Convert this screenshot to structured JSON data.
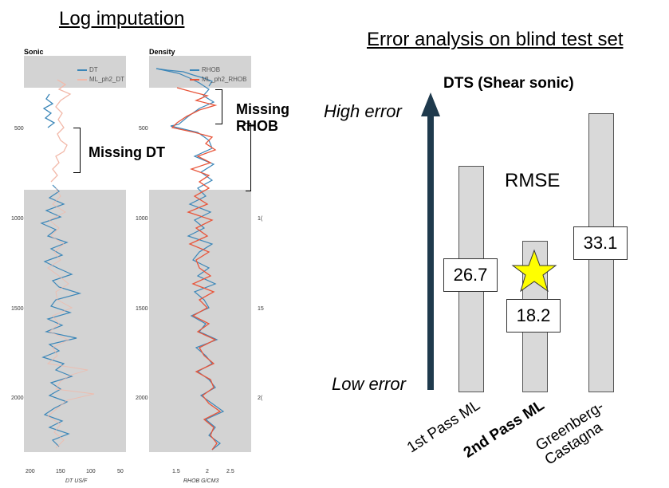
{
  "left_title": "Log imputation",
  "right_title": "Error analysis on blind test set",
  "sonic_panel": {
    "header": "Sonic",
    "legend": [
      {
        "label": "DT",
        "color": "#3b86b8"
      },
      {
        "label": "ML_ph2_DT",
        "color": "#f2b8a8"
      }
    ],
    "xticks": [
      "200",
      "150",
      "100",
      "50"
    ],
    "xaxis_label": "DT US/F",
    "callout": "Missing DT"
  },
  "density_panel": {
    "header": "Density",
    "legend": [
      {
        "label": "RHOB",
        "color": "#3b86b8"
      },
      {
        "label": "ML_ph2_RHOB",
        "color": "#e8553a"
      }
    ],
    "xticks": [
      "1.5",
      "2",
      "2.5"
    ],
    "xaxis_label": "RHOB G/CM3",
    "callout_line1": "Missing",
    "callout_line2": "RHOB"
  },
  "depth_ticks": [
    "500",
    "1000",
    "1500",
    "2000"
  ],
  "right_depth_ticks": [
    "1(",
    "15",
    "2("
  ],
  "chart": {
    "subtitle": "DTS (Shear sonic)",
    "high_label": "High error",
    "low_label": "Low error",
    "metric_label": "RMSE",
    "methods": [
      {
        "name": "1st Pass ML",
        "bold": false,
        "value": "26.7"
      },
      {
        "name": "2nd Pass ML",
        "bold": true,
        "value": "18.2"
      },
      {
        "name": "Greenberg-\nCastagna",
        "bold": false,
        "value": "33.1"
      }
    ]
  },
  "colors": {
    "dt": "#3b86b8",
    "ml_dt": "#f2b8a8",
    "ml_rhob": "#e8553a",
    "arrow": "#1f3a4d",
    "star": "#ffff00"
  }
}
